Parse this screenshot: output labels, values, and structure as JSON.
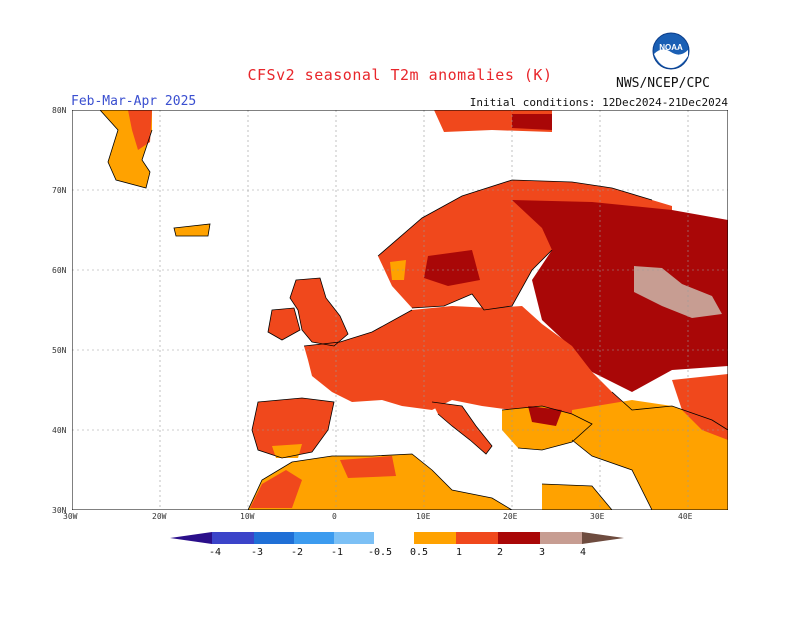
{
  "header": {
    "title": "CFSv2 seasonal T2m anomalies (K)",
    "season": "Feb-Mar-Apr 2025",
    "initial_conditions": "Initial conditions: 12Dec2024-21Dec2024",
    "agency": "NWS/NCEP/CPC",
    "logo_text": "NOAA"
  },
  "axes": {
    "lat_labels": [
      "80N",
      "70N",
      "60N",
      "50N",
      "40N",
      "30N"
    ],
    "lon_labels": [
      "30W",
      "20W",
      "10W",
      "0",
      "10E",
      "20E",
      "30E",
      "40E"
    ]
  },
  "colorbar": {
    "labels": [
      "-4",
      "-3",
      "-2",
      "-1",
      "-0.5",
      "0.5",
      "1",
      "2",
      "3",
      "4"
    ],
    "colors": {
      "lt_-4": "#2a0f8a",
      "-4_-3": "#3b44c9",
      "-3_-2": "#1f6fd6",
      "-2_-1": "#3c9bef",
      "-1_-0.5": "#7cc0f5",
      "-0.5_0.5": "#ffffff",
      "0.5_1": "#ffa200",
      "1_2": "#f0481c",
      "2_3": "#a90707",
      "3_4": "#c79d92",
      "gt_4": "#6e4c3f"
    }
  },
  "map_colors": {
    "land_outline": "#000000",
    "grid": "#9a9a9a"
  }
}
